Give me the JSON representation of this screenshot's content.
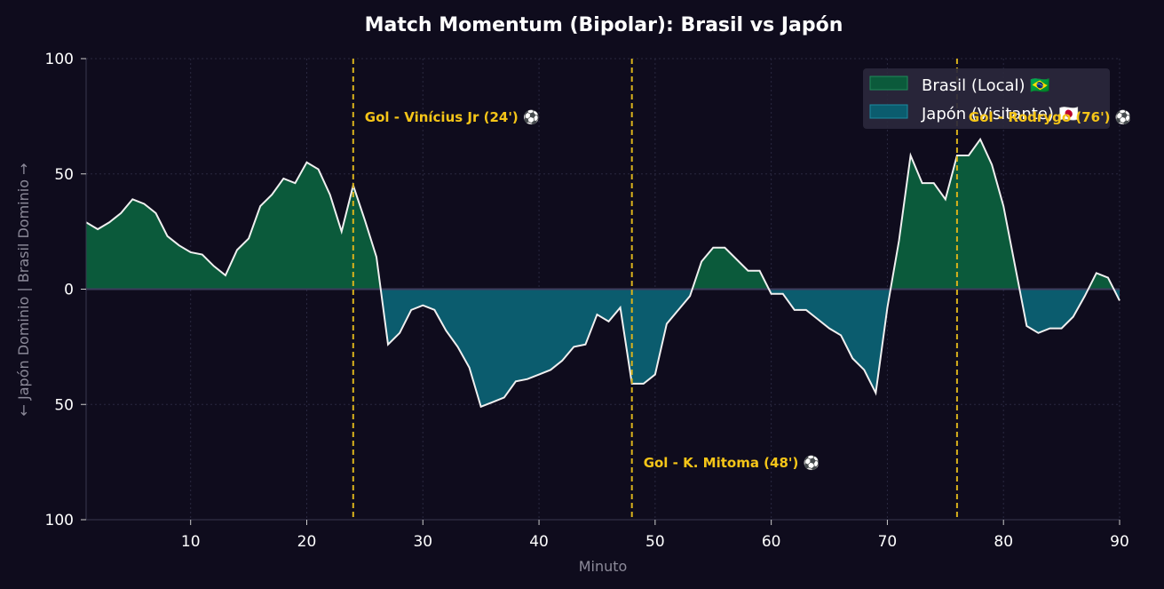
{
  "chart_data": {
    "type": "area",
    "title": "Match Momentum (Bipolar): Brasil vs Japón",
    "xlabel": "Minuto",
    "ylabel": "← Japón Dominio | Brasil Dominio →",
    "xlim": [
      1,
      90
    ],
    "ylim": [
      -100,
      100
    ],
    "x_ticks": [
      10,
      20,
      30,
      40,
      50,
      60,
      70,
      80,
      90
    ],
    "y_ticks": [
      100,
      50,
      0,
      50,
      100
    ],
    "y_tick_values": [
      100,
      50,
      0,
      -50,
      -100
    ],
    "grid": true,
    "legend_position": "top-right",
    "series": [
      {
        "name": "Brasil (Local) 🇧🇷",
        "color": "#0b5a3b",
        "region": "positive"
      },
      {
        "name": "Japón (Visitante) 🇯🇵",
        "color": "#0b5c6e",
        "region": "negative"
      }
    ],
    "x": [
      1,
      2,
      3,
      4,
      5,
      6,
      7,
      8,
      9,
      10,
      11,
      12,
      13,
      14,
      15,
      16,
      17,
      18,
      19,
      20,
      21,
      22,
      23,
      24,
      25,
      26,
      27,
      28,
      29,
      30,
      31,
      32,
      33,
      34,
      35,
      36,
      37,
      38,
      39,
      40,
      41,
      42,
      43,
      44,
      45,
      46,
      47,
      48,
      49,
      50,
      51,
      52,
      53,
      54,
      55,
      56,
      57,
      58,
      59,
      60,
      61,
      62,
      63,
      64,
      65,
      66,
      67,
      68,
      69,
      70,
      71,
      72,
      73,
      74,
      75,
      76,
      77,
      78,
      79,
      80,
      81,
      82,
      83,
      84,
      85,
      86,
      87,
      88,
      89,
      90
    ],
    "values": [
      29,
      26,
      29,
      33,
      39,
      37,
      33,
      23,
      19,
      16,
      15,
      10,
      6,
      17,
      22,
      36,
      41,
      48,
      46,
      55,
      52,
      41,
      25,
      45,
      30,
      14,
      -24,
      -19,
      -9,
      -7,
      -9,
      -18,
      -25,
      -34,
      -51,
      -49,
      -47,
      -40,
      -39,
      -37,
      -35,
      -31,
      -25,
      -24,
      -11,
      -14,
      -8,
      -41,
      -41,
      -37,
      -15,
      -9,
      -3,
      12,
      18,
      18,
      13,
      8,
      8,
      -2,
      -2,
      -9,
      -9,
      -13,
      -17,
      -20,
      -30,
      -35,
      -45,
      -8,
      21,
      58,
      46,
      46,
      39,
      58,
      58,
      65,
      54,
      36,
      10,
      -16,
      -19,
      -17,
      -17,
      -12,
      -3,
      7,
      5,
      -5
    ],
    "annotations": [
      {
        "x": 24,
        "label": "Gol - Vinícius Jr (24') ⚽",
        "side": "top"
      },
      {
        "x": 48,
        "label": "Gol - K. Mitoma (48') ⚽",
        "side": "bottom"
      },
      {
        "x": 76,
        "label": "Gol - Rodrygo (76') ⚽",
        "side": "top"
      }
    ],
    "colors": {
      "background": "#0f0c1d",
      "line": "#f0f0f0",
      "goal_line": "#d9b21c",
      "annotation": "#f5c518",
      "zero_line": "#3d3b5c",
      "legend_bg": "#2a283c"
    }
  }
}
